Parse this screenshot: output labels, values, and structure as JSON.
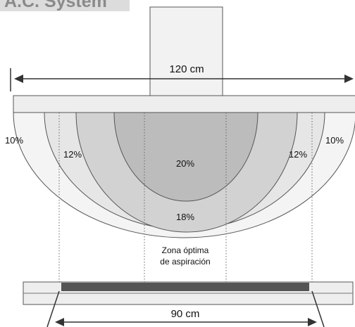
{
  "title": "A.C. System",
  "top_width_label": "120 cm",
  "bottom_width_label": "90 cm",
  "zones": [
    {
      "percent": "10%",
      "color": "#f4f4f4"
    },
    {
      "percent": "12%",
      "color": "#e6e6e6"
    },
    {
      "percent": "18%",
      "color": "#d2d2d2"
    },
    {
      "percent": "20%",
      "color": "#bcbcbc"
    }
  ],
  "optimal_zone_label_line1": "Zona óptima",
  "optimal_zone_label_line2": "de aspiración",
  "colors": {
    "hood_fill": "#eeeeee",
    "stroke": "#555555",
    "strip": "#555555"
  }
}
